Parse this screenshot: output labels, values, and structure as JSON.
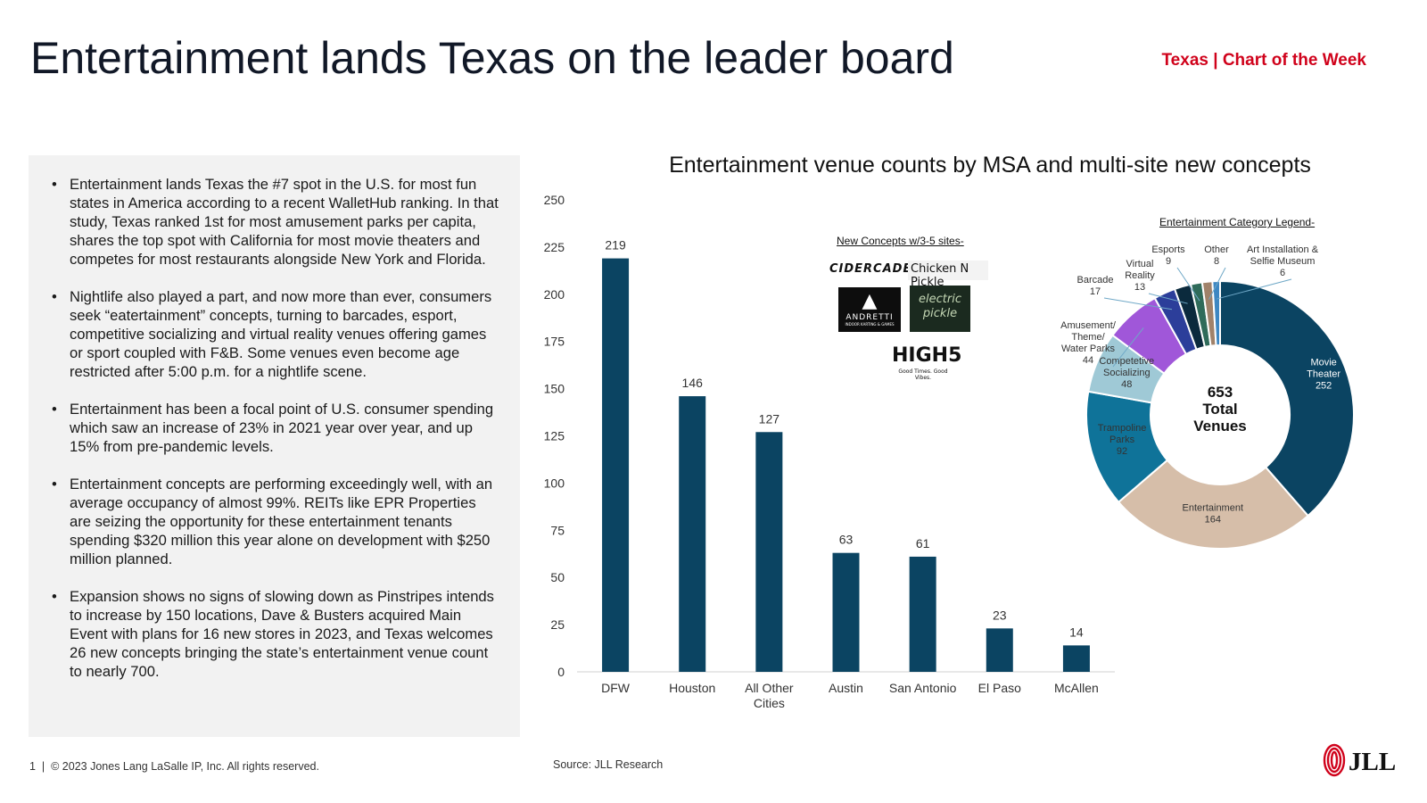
{
  "header": {
    "title": "Entertainment lands Texas on the leader board",
    "tag": "Texas | Chart of the Week"
  },
  "bullets": [
    "Entertainment lands Texas the #7 spot in the U.S. for most fun states in America according to a recent WalletHub ranking. In that study, Texas ranked 1st for most amusement parks per capita, shares the top spot with California for most movie theaters and competes for most restaurants alongside New York and Florida.",
    "Nightlife also played a part, and now more than ever, consumers seek “eatertainment” concepts, turning to barcades, esport, competitive socializing and virtual reality venues offering games or sport coupled with F&B. Some venues even become age restricted after 5:00 p.m. for a nightlife scene.",
    "Entertainment has been a focal point of U.S. consumer spending which saw an increase of 23% in 2021 year over year, and up 15% from pre-pandemic levels.",
    "Entertainment concepts are performing exceedingly well, with an average occupancy of almost 99%. REITs like EPR Properties are seizing the opportunity for these entertainment tenants spending $320 million this year alone on development with $250 million planned.",
    "Expansion shows no signs of slowing down as Pinstripes intends to increase by 150 locations, Dave & Busters acquired Main Event with plans for 16 new stores in 2023, and Texas welcomes 26 new concepts bringing the state’s entertainment venue count to nearly 700."
  ],
  "concepts": {
    "title": "New Concepts w/3-5 sites-",
    "logos": {
      "cidercade": "CIDERCADE",
      "chicken": "Chicken N Pickle",
      "andretti": "ANDRETTI",
      "andretti_sub": "INDOOR KARTING & GAMES",
      "electric": "electric pickle",
      "high5": "HIGH5",
      "high5_sub": "Good Times. Good Vibes."
    }
  },
  "legend_title": "Entertainment Category Legend-",
  "chart_data": [
    {
      "type": "bar",
      "title": "Entertainment venue counts by MSA and multi-site new concepts",
      "categories": [
        "DFW",
        "Houston",
        "All Other Cities",
        "Austin",
        "San Antonio",
        "El Paso",
        "McAllen"
      ],
      "category_lines": [
        [
          "DFW"
        ],
        [
          "Houston"
        ],
        [
          "All Other",
          "Cities"
        ],
        [
          "Austin"
        ],
        [
          "San Antonio"
        ],
        [
          "El Paso"
        ],
        [
          "McAllen"
        ]
      ],
      "values": [
        219,
        146,
        127,
        63,
        61,
        23,
        14
      ],
      "ylim": [
        0,
        250
      ],
      "yticks": [
        0,
        25,
        50,
        75,
        100,
        125,
        150,
        175,
        200,
        225,
        250
      ],
      "color": "#0b4462",
      "grid": false
    },
    {
      "type": "pie",
      "center_text": [
        "653",
        "Total",
        "Venues"
      ],
      "slices": [
        {
          "label_lines": [
            "Movie",
            "Theater"
          ],
          "value": 252,
          "color": "#0b4462",
          "label_inside": true,
          "label_color": "#ffffff"
        },
        {
          "label_lines": [
            "Entertainment"
          ],
          "value": 164,
          "color": "#d6bea9",
          "label_inside": true,
          "label_color": "#333333"
        },
        {
          "label_lines": [
            "Trampoline",
            "Parks"
          ],
          "value": 92,
          "color": "#0f7399",
          "label_inside": true,
          "label_color": "#333333"
        },
        {
          "label_lines": [
            "Competetive",
            "Socializing"
          ],
          "value": 48,
          "color": "#9fc9d6",
          "label_inside": true,
          "label_color": "#333333"
        },
        {
          "label_lines": [
            "Amusement/",
            "Theme/",
            "Water Parks"
          ],
          "value": 44,
          "color": "#a057d9",
          "label_inside": false
        },
        {
          "label_lines": [
            "Barcade"
          ],
          "value": 17,
          "color": "#2c3e9a",
          "label_inside": false
        },
        {
          "label_lines": [
            "Virtual",
            "Reality"
          ],
          "value": 13,
          "color": "#0b2a3d",
          "label_inside": false
        },
        {
          "label_lines": [
            "Esports"
          ],
          "value": 9,
          "color": "#2f6b5a",
          "label_inside": false
        },
        {
          "label_lines": [
            "Other"
          ],
          "value": 8,
          "color": "#a0826a",
          "label_inside": false
        },
        {
          "label_lines": [
            "Art Installation &",
            "Selfie Museum"
          ],
          "value": 6,
          "color": "#3d87c2",
          "label_inside": false
        }
      ]
    }
  ],
  "footer": {
    "page": "1",
    "copyright": "© 2023 Jones Lang LaSalle IP, Inc. All rights reserved.",
    "source": "Source: JLL Research",
    "logo": "JLL"
  }
}
